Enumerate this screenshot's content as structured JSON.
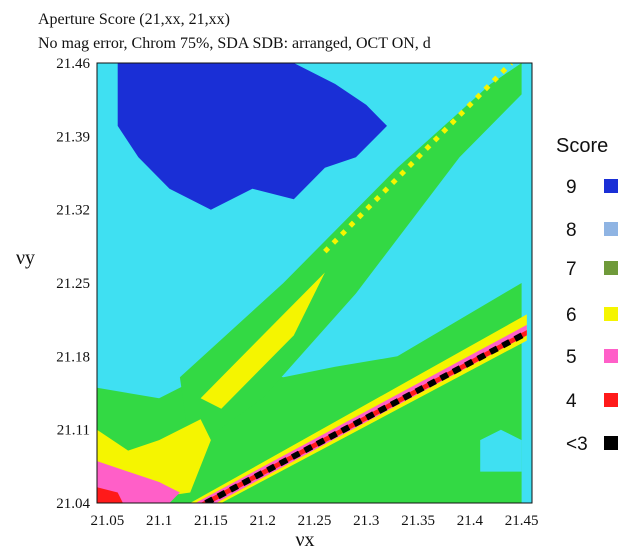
{
  "chart_data": {
    "type": "heatmap",
    "title": "Aperture Score (21,xx, 21,xx)",
    "subtitle": "No mag error, Chrom 75%, SDA SDB: arranged, OCT ON, d",
    "xlabel": "νx",
    "ylabel": "νy",
    "xlim": [
      21.04,
      21.46
    ],
    "ylim": [
      21.04,
      21.46
    ],
    "x_ticks": [
      "21.05",
      "21.1",
      "21.15",
      "21.2",
      "21.25",
      "21.3",
      "21.35",
      "21.4",
      "21.45"
    ],
    "y_ticks": [
      "21.46",
      "21.39",
      "21.32",
      "21.25",
      "21.18",
      "21.11",
      "21.04"
    ],
    "legend": {
      "title": "Score",
      "entries": [
        {
          "label": "9",
          "color": "#1a2fd6"
        },
        {
          "label": "8",
          "color": "#8fb4e3"
        },
        {
          "label": "7",
          "color": "#6f9a3a"
        },
        {
          "label": "6",
          "color": "#f5f500"
        },
        {
          "label": "5",
          "color": "#ff5fc8"
        },
        {
          "label": "4",
          "color": "#ff1a1a"
        },
        {
          "label": "<3",
          "color": "#000000"
        }
      ]
    },
    "map_colors": {
      "9": "#1a2fd6",
      "cyan": "#3fe0f2",
      "green": "#33d944",
      "6": "#f5f500",
      "5": "#ff5fc8",
      "4": "#ff1a1a",
      "<3": "#000000"
    },
    "regions": {
      "blue_score_9": [
        [
          21.06,
          21.46
        ],
        [
          21.12,
          21.46
        ],
        [
          21.14,
          21.46
        ],
        [
          21.23,
          21.46
        ],
        [
          21.27,
          21.44
        ],
        [
          21.3,
          21.42
        ],
        [
          21.32,
          21.4
        ],
        [
          21.29,
          21.37
        ],
        [
          21.26,
          21.36
        ],
        [
          21.23,
          21.33
        ],
        [
          21.19,
          21.34
        ],
        [
          21.15,
          21.32
        ],
        [
          21.11,
          21.34
        ],
        [
          21.08,
          21.37
        ],
        [
          21.06,
          21.4
        ]
      ],
      "green_upper_band": [
        [
          21.12,
          21.16
        ],
        [
          21.22,
          21.25
        ],
        [
          21.33,
          21.36
        ],
        [
          21.42,
          21.44
        ],
        [
          21.45,
          21.46
        ],
        [
          21.45,
          21.43
        ],
        [
          21.39,
          21.37
        ],
        [
          21.29,
          21.24
        ],
        [
          21.2,
          21.14
        ],
        [
          21.13,
          21.09
        ]
      ],
      "yellow_upper_band": [
        [
          21.14,
          21.14
        ],
        [
          21.22,
          21.22
        ],
        [
          21.26,
          21.26
        ],
        [
          21.23,
          21.2
        ],
        [
          21.16,
          21.13
        ]
      ],
      "yellow_dotted_line": [
        [
          21.26,
          21.28
        ],
        [
          21.44,
          21.46
        ]
      ],
      "green_left_region": [
        [
          21.04,
          21.15
        ],
        [
          21.1,
          21.14
        ],
        [
          21.16,
          21.17
        ],
        [
          21.22,
          21.16
        ],
        [
          21.27,
          21.17
        ],
        [
          21.33,
          21.18
        ],
        [
          21.45,
          21.25
        ],
        [
          21.45,
          21.04
        ],
        [
          21.04,
          21.04
        ]
      ],
      "cyan_right_patch": [
        [
          21.41,
          21.07
        ],
        [
          21.45,
          21.07
        ],
        [
          21.45,
          21.1
        ],
        [
          21.43,
          21.11
        ],
        [
          21.41,
          21.1
        ]
      ],
      "yellow_lower_left": [
        [
          21.04,
          21.11
        ],
        [
          21.07,
          21.09
        ],
        [
          21.1,
          21.1
        ],
        [
          21.14,
          21.12
        ],
        [
          21.15,
          21.1
        ],
        [
          21.13,
          21.05
        ],
        [
          21.06,
          21.04
        ],
        [
          21.04,
          21.04
        ]
      ],
      "pink_lower_left": [
        [
          21.04,
          21.08
        ],
        [
          21.07,
          21.07
        ],
        [
          21.1,
          21.06
        ],
        [
          21.12,
          21.05
        ],
        [
          21.11,
          21.04
        ],
        [
          21.04,
          21.04
        ]
      ],
      "red_lower_left": [
        [
          21.04,
          21.055
        ],
        [
          21.06,
          21.05
        ],
        [
          21.065,
          21.04
        ],
        [
          21.04,
          21.04
        ]
      ],
      "yellow_diag_band": [
        [
          21.13,
          21.04
        ],
        [
          21.455,
          21.22
        ],
        [
          21.455,
          21.195
        ],
        [
          21.16,
          21.04
        ]
      ],
      "pink_diag_band": [
        [
          21.135,
          21.04
        ],
        [
          21.455,
          21.21
        ],
        [
          21.455,
          21.2
        ],
        [
          21.155,
          21.04
        ]
      ],
      "red_diag_band": [
        [
          21.14,
          21.04
        ],
        [
          21.455,
          21.205
        ],
        [
          21.455,
          21.2
        ],
        [
          21.15,
          21.04
        ]
      ],
      "black_diag_center": [
        [
          21.145,
          21.04
        ],
        [
          21.455,
          21.2025
        ]
      ]
    },
    "grid": false
  }
}
